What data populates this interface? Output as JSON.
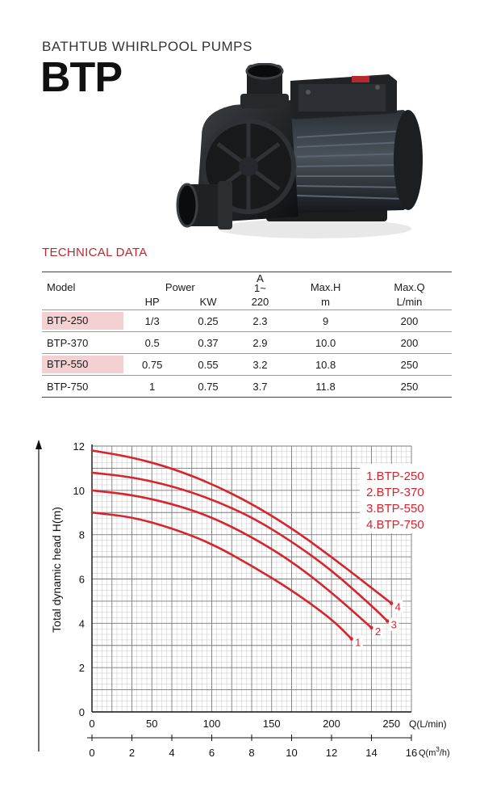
{
  "header": {
    "subtitle": "BATHTUB WHIRLPOOL PUMPS",
    "model": "BTP"
  },
  "product_image": {
    "icon": "whirlpool-pump-illustration"
  },
  "technical_data": {
    "title": "TECHNICAL DATA",
    "headers": {
      "model": "Model",
      "power": "Power",
      "hp": "HP",
      "kw": "KW",
      "amp_a": "A",
      "amp_phase": "1~",
      "amp_v": "220",
      "maxh": "Max.H",
      "maxh_unit": "m",
      "maxq": "Max.Q",
      "maxq_unit": "L/min"
    },
    "rows": [
      {
        "model": "BTP-250",
        "hp": "1/3",
        "kw": "0.25",
        "amp": "2.3",
        "maxh": "9",
        "maxq": "200",
        "highlight": true
      },
      {
        "model": "BTP-370",
        "hp": "0.5",
        "kw": "0.37",
        "amp": "2.9",
        "maxh": "10.0",
        "maxq": "200",
        "highlight": false
      },
      {
        "model": "BTP-550",
        "hp": "0.75",
        "kw": "0.55",
        "amp": "3.2",
        "maxh": "10.8",
        "maxq": "250",
        "highlight": true
      },
      {
        "model": "BTP-750",
        "hp": "1",
        "kw": "0.75",
        "amp": "3.7",
        "maxh": "11.8",
        "maxq": "250",
        "highlight": false
      }
    ]
  },
  "chart_data": {
    "type": "line",
    "ylabel": "Total dynamic head H(m)",
    "ylim": [
      0,
      12
    ],
    "yticks": [
      "0",
      "2",
      "4",
      "6",
      "8",
      "10",
      "12"
    ],
    "x_lpm_label": "Q(L/min)",
    "x_lpm_ticks": [
      "0",
      "50",
      "100",
      "150",
      "200",
      "250"
    ],
    "x_m3h_label_main": "Q(m",
    "x_m3h_label_sup": "3",
    "x_m3h_label_end": "/h)",
    "x_m3h_ticks": [
      "0",
      "2",
      "4",
      "6",
      "8",
      "10",
      "12",
      "14",
      "16"
    ],
    "xlim_m3h": [
      0,
      16
    ],
    "grid": true,
    "legend_placement": "top-right",
    "legend": [
      "1.BTP-250",
      "2.BTP-370",
      "3.BTP-550",
      "4.BTP-750"
    ],
    "line_color": "#d8242c",
    "series": [
      {
        "name": "1",
        "points": [
          [
            0,
            9.0
          ],
          [
            2,
            8.8
          ],
          [
            4,
            8.3
          ],
          [
            6,
            7.6
          ],
          [
            8,
            6.6
          ],
          [
            10,
            5.5
          ],
          [
            12,
            4.2
          ],
          [
            13,
            3.3
          ]
        ]
      },
      {
        "name": "2",
        "points": [
          [
            0,
            10.0
          ],
          [
            2,
            9.8
          ],
          [
            4,
            9.4
          ],
          [
            6,
            8.8
          ],
          [
            8,
            7.9
          ],
          [
            10,
            6.8
          ],
          [
            12,
            5.4
          ],
          [
            14,
            3.8
          ]
        ]
      },
      {
        "name": "3",
        "points": [
          [
            0,
            10.8
          ],
          [
            2,
            10.6
          ],
          [
            4,
            10.2
          ],
          [
            6,
            9.6
          ],
          [
            8,
            8.8
          ],
          [
            10,
            7.7
          ],
          [
            12,
            6.4
          ],
          [
            14,
            4.8
          ],
          [
            14.8,
            4.1
          ]
        ]
      },
      {
        "name": "4",
        "points": [
          [
            0,
            11.8
          ],
          [
            2,
            11.5
          ],
          [
            4,
            11.0
          ],
          [
            6,
            10.3
          ],
          [
            8,
            9.4
          ],
          [
            10,
            8.3
          ],
          [
            12,
            7.0
          ],
          [
            14,
            5.6
          ],
          [
            15,
            4.9
          ]
        ]
      }
    ]
  }
}
